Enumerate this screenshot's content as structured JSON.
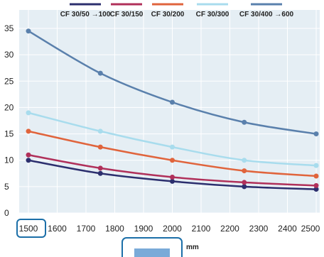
{
  "chart_data": {
    "type": "line",
    "x": [
      1500,
      1750,
      2000,
      2250,
      2500
    ],
    "series": [
      {
        "name": "CF 30/50 →100",
        "color": "#2c2f6e",
        "values": [
          10,
          7.5,
          6,
          5,
          4.5
        ]
      },
      {
        "name": "CF 30/150",
        "color": "#b0305a",
        "values": [
          11,
          8.5,
          6.8,
          5.8,
          5.2
        ]
      },
      {
        "name": "CF 30/200",
        "color": "#e0643c",
        "values": [
          15.5,
          12.5,
          10,
          8,
          7
        ]
      },
      {
        "name": "CF 30/300",
        "color": "#a8dced",
        "values": [
          19,
          15.5,
          12.5,
          10,
          9
        ]
      },
      {
        "name": "CF 30/400 →600",
        "color": "#5a80ac",
        "values": [
          34.5,
          26.5,
          21,
          17.2,
          15
        ]
      }
    ],
    "x_ticks": [
      "1500",
      "1600",
      "1700",
      "1800",
      "1900",
      "2000",
      "2100",
      "2200",
      "2300",
      "2400",
      "2500"
    ],
    "y_ticks": [
      "0",
      "5",
      "10",
      "15",
      "20",
      "25",
      "30",
      "35"
    ],
    "xlim": [
      1500,
      2500
    ],
    "ylim": [
      0,
      35
    ],
    "x_unit": "mm",
    "highlighted_tick": "1500",
    "grid": true,
    "background": "#e5eef4",
    "legend_position": "top"
  }
}
